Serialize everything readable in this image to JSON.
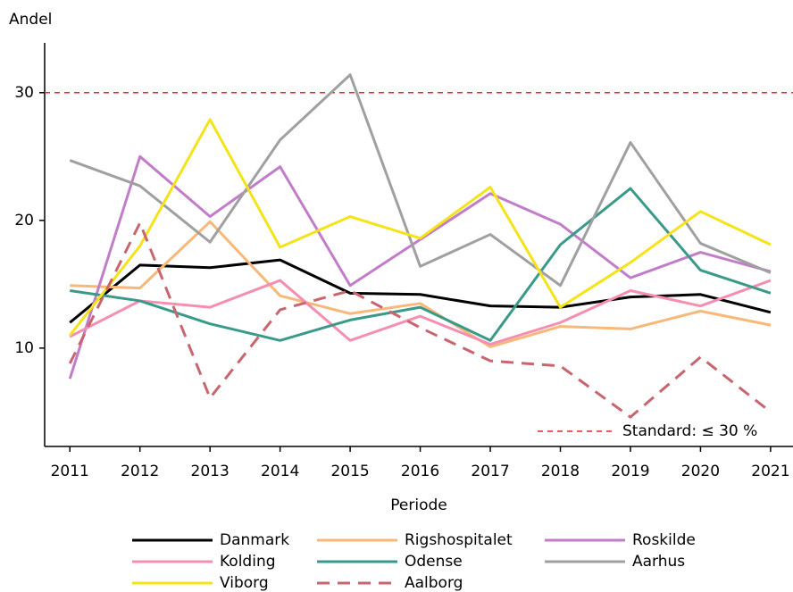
{
  "chart_data": {
    "type": "line",
    "y_label": "Andel",
    "x_label": "Periode",
    "x": [
      2011,
      2012,
      2013,
      2014,
      2015,
      2016,
      2017,
      2018,
      2019,
      2020,
      2021
    ],
    "xlim": [
      2010.64,
      2021.32
    ],
    "xticks": [
      2011,
      2012,
      2013,
      2014,
      2015,
      2016,
      2017,
      2018,
      2019,
      2020,
      2021
    ],
    "ylim": [
      2.3,
      33.9
    ],
    "yticks": [
      10,
      20,
      30
    ],
    "reference_line": {
      "value": 30,
      "label": "Standard: ≤ 30 %",
      "color": "#e8262a"
    },
    "series": [
      {
        "name": "Danmark",
        "color": "#000000",
        "values": [
          12.0,
          16.5,
          16.3,
          16.9,
          14.3,
          14.2,
          13.3,
          13.2,
          14.0,
          14.2,
          12.8
        ]
      },
      {
        "name": "Rigshospitalet",
        "color": "#f7b87a",
        "values": [
          14.9,
          14.7,
          19.9,
          14.1,
          12.7,
          13.5,
          10.1,
          11.7,
          11.5,
          12.9,
          11.8
        ]
      },
      {
        "name": "Roskilde",
        "color": "#c27dc9",
        "values": [
          7.6,
          25.0,
          20.3,
          24.2,
          14.9,
          18.5,
          22.1,
          19.7,
          15.5,
          17.5,
          16.0
        ]
      },
      {
        "name": "Kolding",
        "color": "#f48fb1",
        "values": [
          10.9,
          13.7,
          13.2,
          15.3,
          10.6,
          12.5,
          10.3,
          12.0,
          14.5,
          13.3,
          15.3
        ]
      },
      {
        "name": "Odense",
        "color": "#3a9a8a",
        "values": [
          14.5,
          13.7,
          11.9,
          10.6,
          12.2,
          13.2,
          10.6,
          18.1,
          22.5,
          16.1,
          14.3
        ]
      },
      {
        "name": "Aarhus",
        "color": "#a0a0a0",
        "values": [
          24.7,
          22.7,
          18.3,
          26.3,
          31.4,
          16.4,
          18.9,
          14.9,
          26.1,
          18.2,
          15.9
        ]
      },
      {
        "name": "Viborg",
        "color": "#f5e31a",
        "values": [
          11.0,
          18.0,
          27.9,
          17.9,
          20.3,
          18.6,
          22.6,
          13.2,
          16.7,
          20.7,
          18.1
        ]
      },
      {
        "name": "Aalborg",
        "color": "#c8656e",
        "dashed": true,
        "values": [
          8.8,
          19.8,
          6.1,
          13.0,
          14.5,
          11.6,
          9.0,
          8.6,
          4.6,
          9.3,
          5.0
        ]
      }
    ]
  }
}
